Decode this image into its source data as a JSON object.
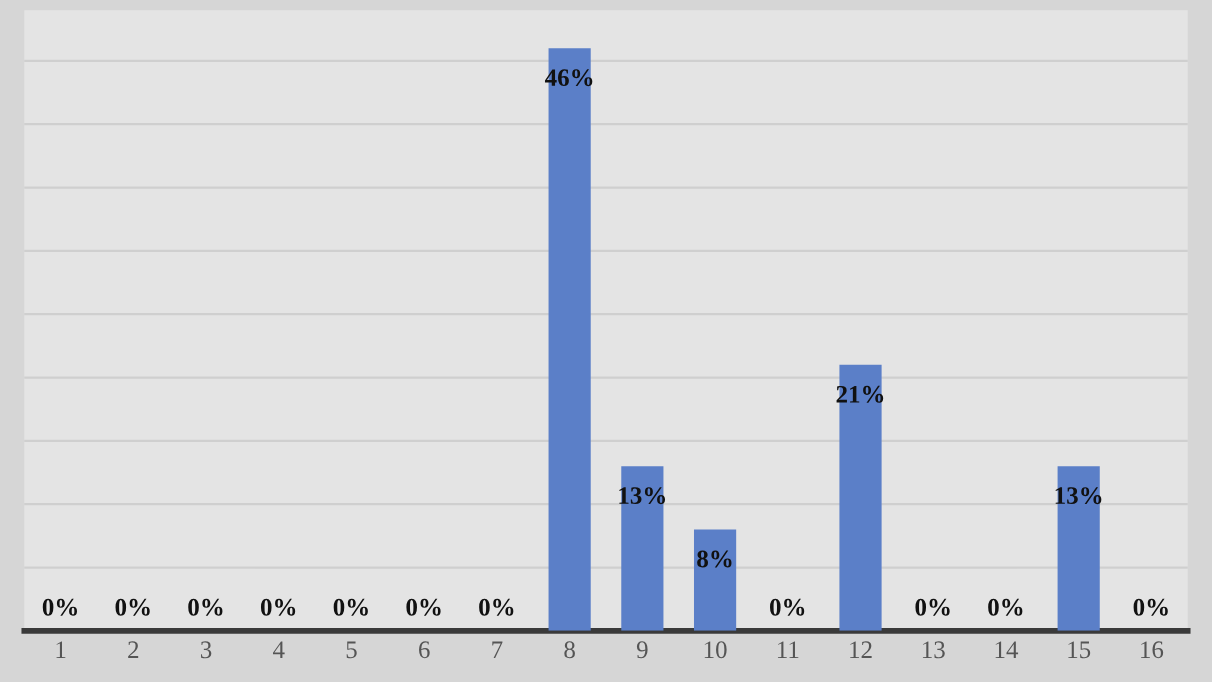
{
  "chart_data": {
    "type": "bar",
    "categories": [
      "1",
      "2",
      "3",
      "4",
      "5",
      "6",
      "7",
      "8",
      "9",
      "10",
      "11",
      "12",
      "13",
      "14",
      "15",
      "16"
    ],
    "values": [
      0,
      0,
      0,
      0,
      0,
      0,
      0,
      46,
      13,
      8,
      0,
      21,
      0,
      0,
      13,
      0
    ],
    "value_labels": [
      "0%",
      "0%",
      "0%",
      "0%",
      "0%",
      "0%",
      "0%",
      "46%",
      "13%",
      "8%",
      "0%",
      "21%",
      "0%",
      "0%",
      "13%",
      "0%"
    ],
    "color": "#5b7fc8",
    "ylim": [
      0,
      49
    ],
    "yticks": [
      {
        "value": 0,
        "label": null
      },
      {
        "value": 5,
        "label": null
      },
      {
        "value": 10,
        "label": null
      },
      {
        "value": 15,
        "label": null
      },
      {
        "value": 20,
        "label": null
      },
      {
        "value": 25,
        "label": null
      },
      {
        "value": 30,
        "label": null
      },
      {
        "value": 35,
        "label": null
      },
      {
        "value": 40,
        "label": null
      },
      {
        "value": 45,
        "label": null
      }
    ],
    "grid": "y",
    "tick_labels": "x"
  }
}
